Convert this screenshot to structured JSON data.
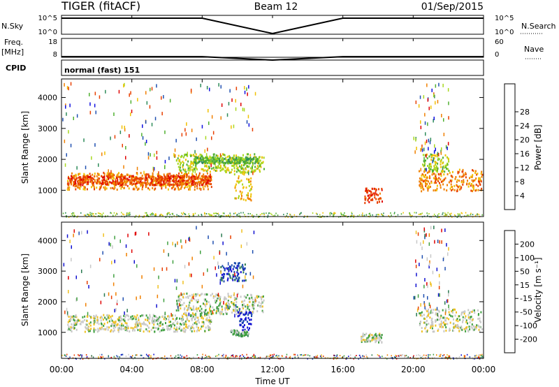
{
  "header": {
    "radar": "TIGER (fitACF)",
    "beam": "Beam 12",
    "date": "01/Sep/2015"
  },
  "summary": {
    "nsky_label": "N.Sky",
    "nsearch_label": "N.Search",
    "freq_label": "Freq.",
    "freq_unit": "[MHz]",
    "nave_label": "Nave",
    "cpid_label": "CPID",
    "cpid_text": "normal (fast) 151",
    "nsky_ticks": [
      "10^5",
      "10^0"
    ],
    "nsearch_ticks": [
      "10^5",
      "10^0"
    ],
    "freq_ticks": [
      "18",
      "8"
    ],
    "nave_ticks": [
      "60",
      "0"
    ]
  },
  "colors": {
    "power": [
      "#1010e0",
      "#2050b0",
      "#2e8c5a",
      "#50b030",
      "#a8d820",
      "#f0c000",
      "#f08000",
      "#e84000",
      "#e00000"
    ],
    "velocity": [
      "#1010d0",
      "#2050b0",
      "#2a7a50",
      "#40a040",
      "#c8c8c8",
      "#f0c020",
      "#f08000",
      "#e84000",
      "#e00000"
    ]
  },
  "chart_data": [
    {
      "type": "line",
      "title": "N.Sky / N.Search",
      "x": [
        "00:00",
        "04:00",
        "08:00",
        "12:00",
        "16:00",
        "20:00",
        "00:00"
      ],
      "series": [
        {
          "name": "N.Sky",
          "values": [
            85000,
            85000,
            90000,
            0,
            85000,
            85000,
            85000
          ]
        },
        {
          "name": "N.Search",
          "values": [
            85000,
            85000,
            90000,
            0,
            85000,
            85000,
            85000
          ]
        }
      ]
    },
    {
      "type": "line",
      "title": "Freq. [MHz] / Nave",
      "x": [
        "00:00",
        "04:00",
        "08:00",
        "12:00",
        "16:00",
        "20:00",
        "00:00"
      ],
      "series": [
        {
          "name": "Freq.",
          "values": [
            9.8,
            9.8,
            9.8,
            8,
            9.8,
            9.8,
            9.8
          ]
        },
        {
          "name": "Nave",
          "values": [
            12,
            12,
            12,
            0,
            12,
            12,
            12
          ]
        }
      ]
    },
    {
      "type": "heatmap",
      "title": "Power",
      "xlabel": "Time UT",
      "ylabel": "Slant Range [km]",
      "x_ticks": [
        "00:00",
        "04:00",
        "08:00",
        "12:00",
        "16:00",
        "20:00",
        "00:00"
      ],
      "y_ticks": [
        "1000",
        "2000",
        "3000",
        "4000"
      ],
      "colorbar_label": "Power [dB]",
      "colorbar_ticks": [
        "4",
        "8",
        "12",
        "16",
        "20",
        "24",
        "28"
      ],
      "bands": [
        {
          "t_start": 0.3,
          "t_end": 8.5,
          "r_start": 1050,
          "r_end": 1600,
          "level": 6
        },
        {
          "t_start": 0.3,
          "t_end": 8.5,
          "r_start": 1200,
          "r_end": 1500,
          "level": 7
        },
        {
          "t_start": 6.5,
          "t_end": 11.5,
          "r_start": 1600,
          "r_end": 2200,
          "level": 4
        },
        {
          "t_start": 7.5,
          "t_end": 11.2,
          "r_start": 1900,
          "r_end": 2100,
          "level": 3
        },
        {
          "t_start": 9.8,
          "t_end": 10.8,
          "r_start": 700,
          "r_end": 1700,
          "level": 5
        },
        {
          "t_start": 17.2,
          "t_end": 18.2,
          "r_start": 600,
          "r_end": 1100,
          "level": 7
        },
        {
          "t_start": 20.3,
          "t_end": 23.9,
          "r_start": 1000,
          "r_end": 1700,
          "level": 6
        },
        {
          "t_start": 20.5,
          "t_end": 22.0,
          "r_start": 1600,
          "r_end": 2200,
          "level": 4
        }
      ]
    },
    {
      "type": "heatmap",
      "title": "Velocity",
      "xlabel": "Time UT",
      "ylabel": "Slant Range [km]",
      "x_ticks": [
        "00:00",
        "04:00",
        "08:00",
        "12:00",
        "16:00",
        "20:00",
        "00:00"
      ],
      "y_ticks": [
        "1000",
        "2000",
        "3000",
        "4000"
      ],
      "colorbar_label": "Velocity [m s⁻¹]",
      "colorbar_ticks": [
        "200",
        "100",
        "50",
        "15",
        "-15",
        "-50",
        "-100",
        "-200"
      ],
      "bands": [
        {
          "t_start": 0.3,
          "t_end": 8.5,
          "r_start": 1050,
          "r_end": 1600,
          "level": 4
        },
        {
          "t_start": 6.5,
          "t_end": 11.5,
          "r_start": 1600,
          "r_end": 2300,
          "level": 4
        },
        {
          "t_start": 10.0,
          "t_end": 10.8,
          "r_start": 1100,
          "r_end": 1700,
          "level": 0
        },
        {
          "t_start": 9.6,
          "t_end": 10.6,
          "r_start": 900,
          "r_end": 1100,
          "level": 3
        },
        {
          "t_start": 17.0,
          "t_end": 18.2,
          "r_start": 700,
          "r_end": 1000,
          "level": 4
        },
        {
          "t_start": 20.3,
          "t_end": 23.9,
          "r_start": 1050,
          "r_end": 1800,
          "level": 4
        },
        {
          "t_start": 9.0,
          "t_end": 10.5,
          "r_start": 2700,
          "r_end": 3300,
          "level": 1
        }
      ]
    }
  ]
}
